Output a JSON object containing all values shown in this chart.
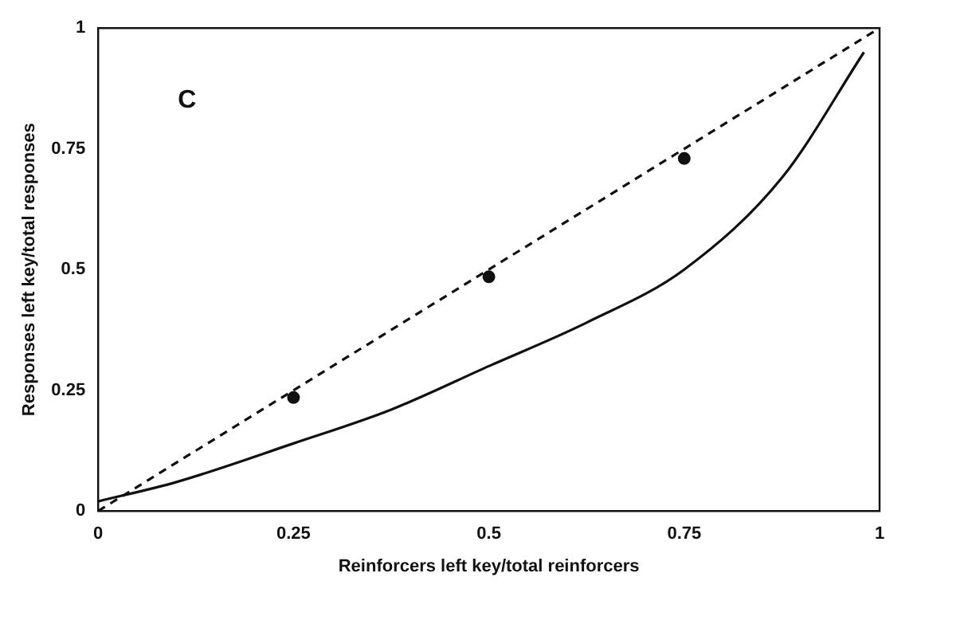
{
  "chart_data": {
    "type": "line",
    "xlabel": "Reinforcers left key/total reinforcers",
    "ylabel": "Responses left key/total responses",
    "annotations": [
      "C"
    ],
    "xlim": [
      0,
      1
    ],
    "ylim": [
      0,
      1
    ],
    "xticks": [
      0,
      0.25,
      0.5,
      0.75,
      1
    ],
    "yticks": [
      0,
      0.25,
      0.5,
      0.75,
      1
    ],
    "grid": false,
    "legend": false,
    "series": [
      {
        "color": "#111111",
        "line_style": "dashed",
        "marker": "none",
        "x": [
          0,
          1
        ],
        "values": [
          0,
          1
        ]
      },
      {
        "color": "#111111",
        "line_style": "solid",
        "marker": "none",
        "x": [
          0,
          0.1,
          0.25,
          0.375,
          0.5,
          0.625,
          0.75,
          0.875,
          0.98
        ],
        "values": [
          0.02,
          0.06,
          0.14,
          0.21,
          0.3,
          0.39,
          0.5,
          0.69,
          0.95
        ]
      },
      {
        "type": "scatter",
        "color": "#111111",
        "marker": "circle",
        "x": [
          0.25,
          0.5,
          0.75
        ],
        "values": [
          0.235,
          0.485,
          0.73
        ]
      }
    ]
  }
}
